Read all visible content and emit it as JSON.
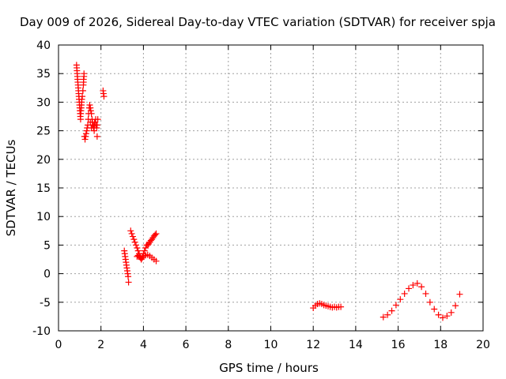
{
  "chart_data": {
    "type": "scatter",
    "title": "Day 009 of 2026, Sidereal Day-to-day VTEC variation (SDTVAR) for receiver spja",
    "xlabel": "GPS time / hours",
    "ylabel": "SDTVAR / TECUs",
    "xlim": [
      0,
      20
    ],
    "ylim": [
      -10,
      40
    ],
    "xticks": [
      0,
      2,
      4,
      6,
      8,
      10,
      12,
      14,
      16,
      18,
      20
    ],
    "yticks": [
      -10,
      -5,
      0,
      5,
      10,
      15,
      20,
      25,
      30,
      35,
      40
    ],
    "grid": true,
    "marker": "+",
    "series_color": "#ff0000",
    "series": [
      {
        "x": [
          0.85,
          0.86,
          0.87,
          0.88,
          0.89,
          0.9,
          0.91,
          0.92,
          0.93,
          0.94,
          0.95,
          0.96,
          0.97,
          0.98,
          0.99,
          1.0,
          1.01,
          1.02,
          1.03,
          1.04,
          1.05,
          1.06,
          1.07,
          1.08,
          1.09,
          1.1,
          1.12,
          1.15,
          1.17,
          1.18,
          1.2,
          1.22,
          1.25,
          1.28,
          1.3,
          1.33,
          1.35,
          1.38,
          1.4,
          1.42,
          1.45,
          1.47,
          1.5,
          1.52,
          1.55,
          1.58,
          1.6,
          1.62,
          1.65,
          1.68,
          1.7,
          1.72,
          1.75,
          1.78,
          1.8,
          1.82,
          1.85,
          1.5,
          1.55,
          1.6,
          1.65,
          1.7,
          1.2,
          1.18,
          1.15,
          1.82,
          2.1,
          2.12,
          2.14
        ],
        "y": [
          36.5,
          36,
          35.5,
          35,
          34.5,
          34,
          33.5,
          33,
          32.5,
          32,
          31.5,
          31,
          30.5,
          30,
          29.5,
          29,
          28.5,
          28,
          27.5,
          27,
          28,
          28.5,
          29,
          29.5,
          30,
          30.5,
          31,
          32,
          33,
          34,
          35,
          24,
          23.5,
          24,
          24.5,
          25,
          25.5,
          26,
          27,
          28,
          29,
          29.5,
          29,
          28.5,
          28,
          27,
          26.5,
          26,
          25.5,
          25,
          26,
          26.5,
          27,
          26,
          25.5,
          26,
          27,
          26.5,
          25.5,
          26,
          25.8,
          26.5,
          34.5,
          33.5,
          32,
          24,
          32,
          31.5,
          31
        ]
      },
      {
        "x": [
          3.1,
          3.12,
          3.14,
          3.16,
          3.18,
          3.2,
          3.22,
          3.24,
          3.26,
          3.28,
          3.3,
          3.4,
          3.45,
          3.5,
          3.55,
          3.6,
          3.65,
          3.7,
          3.75,
          3.8,
          3.85,
          3.9,
          3.95,
          4.0,
          4.05,
          4.1,
          4.15,
          4.2,
          4.25,
          4.3,
          4.35,
          4.4,
          4.45,
          4.5,
          4.55,
          4.6,
          3.7,
          3.75,
          3.8,
          3.85,
          3.9,
          3.95,
          4.0,
          4.1,
          4.2,
          4.3,
          4.4,
          4.5,
          4.6
        ],
        "y": [
          4,
          3.5,
          3,
          2.5,
          2,
          1.5,
          1,
          0.5,
          0,
          -0.5,
          -1.5,
          7.5,
          7,
          6.5,
          6,
          5.5,
          5,
          4.5,
          4,
          3.5,
          3,
          2.5,
          3,
          3.5,
          4,
          4.5,
          5,
          5,
          5.2,
          5.5,
          5.8,
          6,
          6.3,
          6.6,
          6.8,
          7,
          3,
          3.2,
          3.1,
          2.8,
          2.6,
          2.8,
          3,
          3.2,
          3.3,
          3.1,
          2.8,
          2.5,
          2.2
        ]
      },
      {
        "x": [
          12.0,
          12.1,
          12.2,
          12.3,
          12.4,
          12.5,
          12.6,
          12.7,
          12.8,
          12.9,
          13.0,
          13.1,
          13.2,
          13.3
        ],
        "y": [
          -6,
          -5.6,
          -5.3,
          -5.2,
          -5.3,
          -5.5,
          -5.6,
          -5.7,
          -5.8,
          -5.9,
          -5.8,
          -5.9,
          -5.8,
          -5.8
        ]
      },
      {
        "x": [
          15.3,
          15.5,
          15.7,
          15.9,
          16.1,
          16.3,
          16.5,
          16.7,
          16.9,
          17.1,
          17.3,
          17.5,
          17.7,
          17.9,
          18.1,
          18.3,
          18.5,
          18.7,
          18.9
        ],
        "y": [
          -7.6,
          -7.2,
          -6.5,
          -5.5,
          -4.5,
          -3.5,
          -2.6,
          -2.0,
          -1.7,
          -2.3,
          -3.5,
          -5.0,
          -6.2,
          -7.2,
          -7.7,
          -7.4,
          -6.8,
          -5.6,
          -3.6
        ]
      }
    ]
  }
}
